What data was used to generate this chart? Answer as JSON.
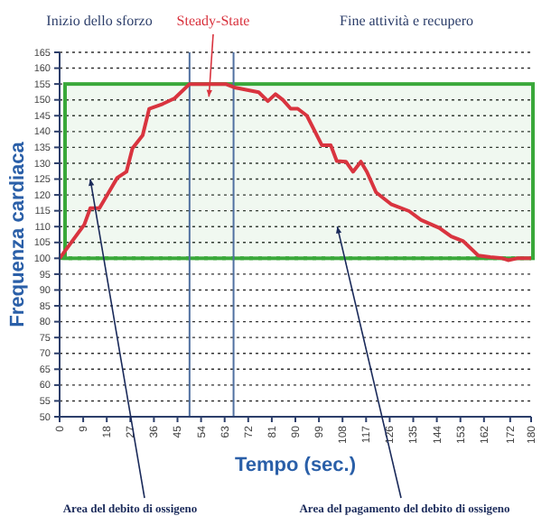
{
  "chart_data": {
    "type": "line",
    "xlabel": "Tempo (sec.)",
    "ylabel": "Frequenza cardiaca",
    "x": [
      0,
      9.4,
      11.7,
      15.2,
      18.1,
      22,
      25.5,
      27.8,
      31.7,
      34.2,
      39.3,
      43.9,
      49.6,
      63.4,
      66.8,
      76,
      79.5,
      82.4,
      85.2,
      88.2,
      90.9,
      94.4,
      100.1,
      103.5,
      105.8,
      109.3,
      112,
      115,
      117.3,
      120.8,
      126.5,
      133.4,
      138,
      144.9,
      149.5,
      154.1,
      159.8,
      164.4,
      169,
      171.2,
      174.7,
      180
    ],
    "series": [
      {
        "color": "#d9343f",
        "values": [
          100,
          110.6,
          115.8,
          115.8,
          119.9,
          125.4,
          127.3,
          134.7,
          138.8,
          147.2,
          148.7,
          150.5,
          155,
          155,
          153.9,
          152.4,
          149.6,
          151.8,
          150,
          147.2,
          147.2,
          145,
          135.7,
          135.7,
          130.7,
          130.5,
          127.3,
          130.5,
          127.3,
          120.8,
          117.1,
          114.9,
          112.1,
          109.6,
          106.9,
          105.4,
          100.9,
          100.4,
          100,
          99.4,
          100,
          100
        ]
      }
    ],
    "xlim": [
      0,
      180
    ],
    "xticks": [
      0,
      9,
      18,
      27,
      36,
      45,
      54,
      63,
      72,
      81,
      90,
      99,
      108,
      117,
      126,
      135,
      144,
      153,
      162,
      172,
      180
    ],
    "ylim": [
      50,
      165
    ],
    "yticks": [
      50,
      55,
      60,
      65,
      70,
      75,
      80,
      85,
      90,
      95,
      100,
      105,
      110,
      115,
      120,
      125,
      130,
      135,
      140,
      145,
      150,
      155,
      160,
      165
    ],
    "grid": "y",
    "marker": "none",
    "line_style": "solid",
    "ref_lines": [
      {
        "axis": "y",
        "value": 100,
        "color": "#3aa83a",
        "line_style": "dotted"
      },
      {
        "axis": "x",
        "value": 49.6,
        "color": "#5070a0",
        "line_style": "solid"
      },
      {
        "axis": "x",
        "value": 66.4,
        "color": "#5070a0",
        "line_style": "solid"
      }
    ],
    "bands": [
      {
        "axis": "y",
        "from": 100,
        "to": 155,
        "color": "#3aa83a"
      }
    ],
    "annotations": [
      "Inizio dello sforzo",
      {
        "text": "Steady-State",
        "x": 57,
        "y": 151
      },
      "Fine attività e recupero",
      {
        "text": "Area del debito di ossigeno",
        "x": 11.7,
        "y": 125
      },
      {
        "text": "Area del pagamento del debito di ossigeno",
        "x": 106,
        "y": 110
      }
    ]
  }
}
